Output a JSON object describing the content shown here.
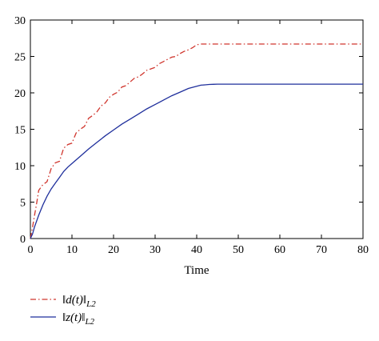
{
  "chart_data": {
    "type": "line",
    "title": "",
    "xlabel": "Time",
    "ylabel": "",
    "xlim": [
      0,
      80
    ],
    "ylim": [
      0,
      30
    ],
    "xticks": [
      "0",
      "10",
      "20",
      "30",
      "40",
      "50",
      "60",
      "70",
      "80"
    ],
    "yticks": [
      "0",
      "5",
      "10",
      "15",
      "20",
      "25",
      "30"
    ],
    "grid": false,
    "legend_placement": "bottom-left, below plot",
    "series": [
      {
        "name": "‖d(t)‖L2",
        "color": "#d0362e",
        "style": "dash-dot",
        "x": [
          0,
          0.5,
          1,
          1.5,
          2,
          3,
          4,
          5,
          6,
          7,
          8,
          9,
          10,
          11,
          12,
          13,
          14,
          15,
          16,
          17,
          18,
          19,
          20,
          21,
          22,
          23,
          24,
          25,
          26,
          27,
          28,
          29,
          30,
          31,
          32,
          33,
          34,
          35,
          36,
          37,
          38,
          39,
          40,
          41,
          45,
          50,
          60,
          70,
          80
        ],
        "y": [
          0,
          1.5,
          3.2,
          4.8,
          6.6,
          7.4,
          7.8,
          9.6,
          10.4,
          10.6,
          12.4,
          12.9,
          13.1,
          14.5,
          15.0,
          15.4,
          16.5,
          16.9,
          17.4,
          18.2,
          18.6,
          19.4,
          19.8,
          20.1,
          20.8,
          21.0,
          21.5,
          22.0,
          22.2,
          22.6,
          23.1,
          23.3,
          23.5,
          24.0,
          24.3,
          24.6,
          24.9,
          25.0,
          25.4,
          25.7,
          25.9,
          26.2,
          26.6,
          26.7,
          26.7,
          26.7,
          26.7,
          26.7,
          26.7
        ]
      },
      {
        "name": "‖z(t)‖L2",
        "color": "#1f2f9c",
        "style": "solid",
        "x": [
          0,
          0.5,
          1,
          2,
          3,
          4,
          5,
          6,
          7,
          8,
          9,
          10,
          12,
          14,
          16,
          18,
          20,
          22,
          24,
          26,
          28,
          30,
          32,
          34,
          36,
          38,
          40,
          41,
          42,
          43,
          44,
          45,
          50,
          60,
          70,
          80
        ],
        "y": [
          0,
          0.6,
          1.6,
          3.2,
          4.6,
          5.8,
          6.8,
          7.6,
          8.4,
          9.2,
          9.8,
          10.3,
          11.3,
          12.3,
          13.2,
          14.1,
          14.9,
          15.7,
          16.4,
          17.1,
          17.8,
          18.4,
          19.0,
          19.6,
          20.1,
          20.6,
          20.9,
          21.05,
          21.1,
          21.15,
          21.18,
          21.2,
          21.2,
          21.2,
          21.2,
          21.2
        ]
      }
    ]
  },
  "legend": {
    "items": [
      {
        "norm": "d(t)",
        "sub": "L2"
      },
      {
        "norm": "z(t)",
        "sub": "L2"
      }
    ]
  }
}
